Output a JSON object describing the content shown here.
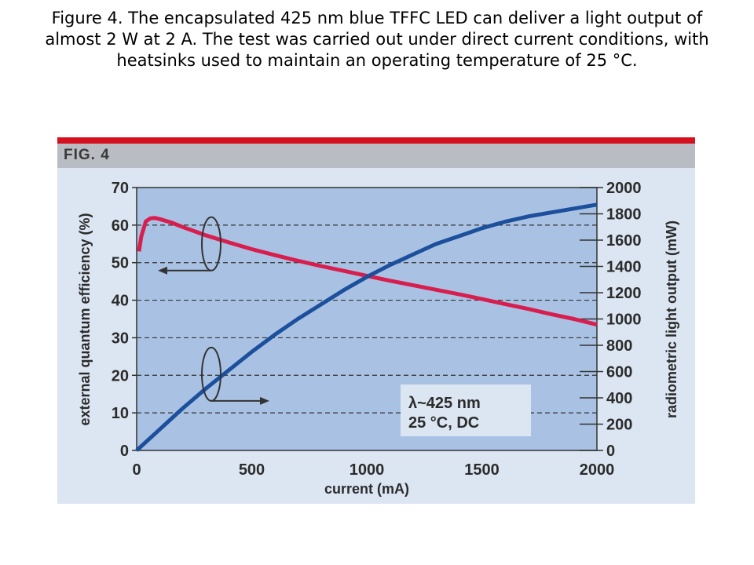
{
  "caption": "Figure 4. The encapsulated 425 nm blue TFFC LED can deliver a light output of almost 2 W at 2 A. The test was carried out under direct current conditions, with heatsinks used to maintain an operating temperature of 25 °C.",
  "figure_label": "FIG. 4",
  "colors": {
    "accent_red": "#d6101e",
    "plot_bg": "#a9c2e3",
    "panel_bg": "#dce6f2",
    "eqe_line": "#d81e4e",
    "power_line": "#1c4f9c"
  },
  "chart_data": {
    "type": "line",
    "x_label": "current (mA)",
    "xlim": [
      0,
      2000
    ],
    "x_ticks": [
      0,
      500,
      1000,
      1500,
      2000
    ],
    "y_left": {
      "label": "external quantum efficiency (%)",
      "lim": [
        0,
        70
      ],
      "ticks": [
        0,
        10,
        20,
        30,
        40,
        50,
        60,
        70
      ]
    },
    "y_right": {
      "label": "radiometric light output (mW)",
      "lim": [
        0,
        2000
      ],
      "ticks": [
        0,
        200,
        400,
        600,
        800,
        1000,
        1200,
        1400,
        1600,
        1800,
        2000
      ]
    },
    "grid": "horizontal dashed",
    "series": [
      {
        "axis": "left",
        "x": [
          10,
          20,
          40,
          60,
          80,
          100,
          150,
          200,
          300,
          400,
          500,
          600,
          700,
          800,
          900,
          1000,
          1100,
          1200,
          1300,
          1400,
          1500,
          1600,
          1700,
          1800,
          1900,
          2000
        ],
        "y": [
          53,
          57,
          61,
          61.8,
          61.9,
          61.6,
          60.7,
          59.5,
          57.3,
          55.4,
          53.6,
          52,
          50.5,
          49.1,
          47.8,
          46.5,
          45.2,
          44,
          42.8,
          41.6,
          40.3,
          39,
          37.7,
          36.3,
          35,
          33.5
        ]
      },
      {
        "axis": "right",
        "x": [
          0,
          100,
          200,
          300,
          400,
          500,
          600,
          700,
          800,
          900,
          1000,
          1100,
          1200,
          1300,
          1400,
          1500,
          1600,
          1700,
          1800,
          1900,
          2000
        ],
        "y": [
          0,
          160,
          320,
          470,
          610,
          750,
          880,
          1000,
          1110,
          1220,
          1320,
          1410,
          1490,
          1570,
          1630,
          1690,
          1740,
          1780,
          1810,
          1840,
          1870
        ]
      }
    ],
    "annotation": [
      "λ~425 nm",
      "25 °C, DC"
    ],
    "legend_position": "bottom-right"
  }
}
